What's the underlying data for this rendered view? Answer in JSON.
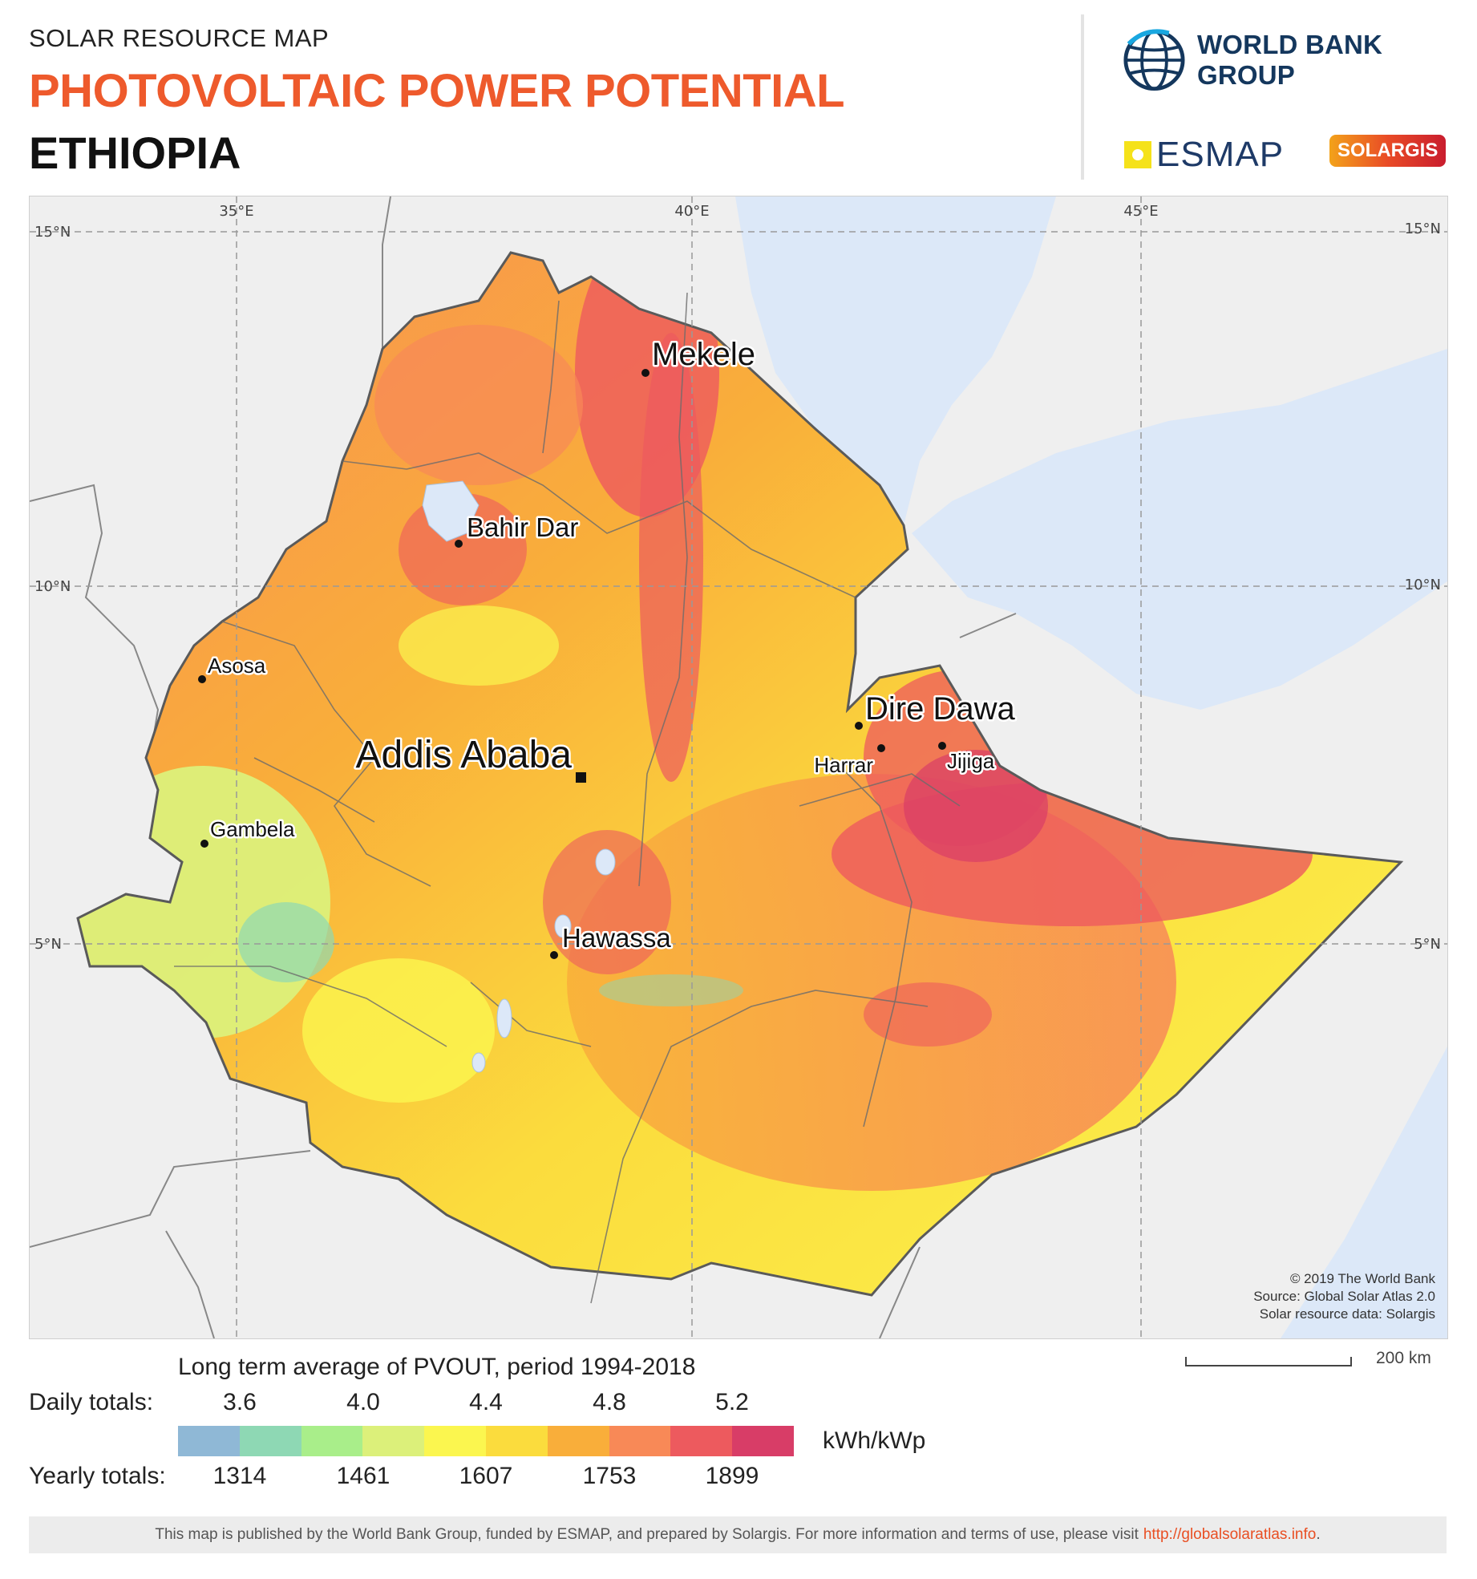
{
  "header": {
    "kicker": "SOLAR RESOURCE MAP",
    "title": "PHOTOVOLTAIC POWER POTENTIAL",
    "country": "ETHIOPIA"
  },
  "logos": {
    "world_bank": "WORLD BANK GROUP",
    "esmap": "ESMAP",
    "solargis": "SOLARGIS"
  },
  "map": {
    "graticule": {
      "lon_top": [
        "35°E",
        "40°E",
        "45°E"
      ],
      "lat_left": [
        "15°N",
        "10°N",
        "5°N"
      ],
      "lat_right": [
        "15°N",
        "10°N",
        "5°N"
      ]
    },
    "cities": [
      {
        "name": "Mekele"
      },
      {
        "name": "Bahir Dar"
      },
      {
        "name": "Asosa"
      },
      {
        "name": "Dire Dawa"
      },
      {
        "name": "Harrar"
      },
      {
        "name": "Jijiga"
      },
      {
        "name": "Addis Ababa",
        "capital": true
      },
      {
        "name": "Gambela"
      },
      {
        "name": "Hawassa"
      }
    ],
    "credits": [
      "© 2019 The World Bank",
      "Source: Global Solar Atlas 2.0",
      "Solar resource data: Solargis"
    ],
    "scale_label": "200 km"
  },
  "legend": {
    "title": "Long term average of PVOUT, period 1994-2018",
    "daily_label": "Daily totals:",
    "daily_ticks": [
      "3.6",
      "4.0",
      "4.4",
      "4.8",
      "5.2"
    ],
    "yearly_label": "Yearly totals:",
    "yearly_ticks": [
      "1314",
      "1461",
      "1607",
      "1753",
      "1899"
    ],
    "unit": "kWh/kWp",
    "colors": [
      "#8fb8d6",
      "#8ed8b4",
      "#a9ee8a",
      "#dcf07a",
      "#fbf64f",
      "#fbdc3d",
      "#f9ae3a",
      "#f88957",
      "#ed5a5e",
      "#d83d67"
    ]
  },
  "footer": {
    "text": "This map is published by the World Bank Group, funded by ESMAP, and prepared by Solargis. For more information and terms of use, please visit",
    "link": "http://globalsolaratlas.info",
    "suffix": "."
  }
}
